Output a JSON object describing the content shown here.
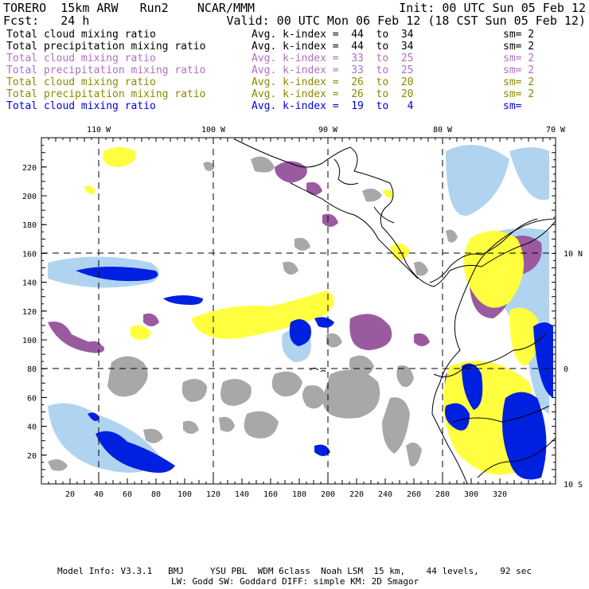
{
  "header": {
    "model": "TORERO  15km ARW   Run2    NCAR/MMM",
    "init": "Init: 00 UTC Sun 05 Feb 12",
    "fcst": "Fcst:   24 h",
    "valid": "Valid: 00 UTC Mon 06 Feb 12 (18 CST Sun 05 Feb 12)"
  },
  "legend": [
    {
      "field": "Total cloud mixing ratio",
      "kidx": "Avg. k-index =  44  to  34",
      "sm": "sm= 2",
      "color": "#000000"
    },
    {
      "field": "Total precipitation mixing ratio",
      "kidx": "Avg. k-index =  44  to  34",
      "sm": "sm= 2",
      "color": "#000000"
    },
    {
      "field": "Total cloud mixing ratio",
      "kidx": "Avg. k-index =  33  to  25",
      "sm": "sm= 2",
      "color": "#b070c0"
    },
    {
      "field": "Total precipitation mixing ratio",
      "kidx": "Avg. k-index =  33  to  25",
      "sm": "sm= 2",
      "color": "#b070c0"
    },
    {
      "field": "Total cloud mixing ratio",
      "kidx": "Avg. k-index =  26  to  20",
      "sm": "sm= 2",
      "color": "#8a8a00"
    },
    {
      "field": "Total precipitation mixing ratio",
      "kidx": "Avg. k-index =  26  to  20",
      "sm": "sm= 2",
      "color": "#8a8a00"
    },
    {
      "field": "Total cloud mixing ratio",
      "kidx": "Avg. k-index =  19  to   4",
      "sm": "sm= ",
      "color": "#0000e0"
    }
  ],
  "axes": {
    "x_ticks": [
      "20",
      "40",
      "60",
      "80",
      "100",
      "120",
      "140",
      "160",
      "180",
      "200",
      "220",
      "240",
      "260",
      "280",
      "300",
      "320"
    ],
    "y_ticks": [
      "20",
      "40",
      "60",
      "80",
      "100",
      "120",
      "140",
      "160",
      "180",
      "200",
      "220"
    ],
    "lon_labels": [
      "110 W",
      "100 W",
      "90 W",
      "80 W",
      "70 W"
    ],
    "lat_labels": [
      "10 N",
      "0",
      "10 S"
    ]
  },
  "footer": {
    "line1": "Model Info: V3.3.1   BMJ     YSU PBL  WDM 6class  Noah LSM  15 km,    44 levels,    92 sec",
    "line2": "LW: Godd SW: Goddard DIFF: simple KM: 2D Smagor"
  },
  "colors": {
    "gray": "#a8a8a8",
    "purple": "#9a5aa0",
    "yellow": "#ffff40",
    "light_blue": "#b0d4f0",
    "blue": "#0020e0"
  }
}
